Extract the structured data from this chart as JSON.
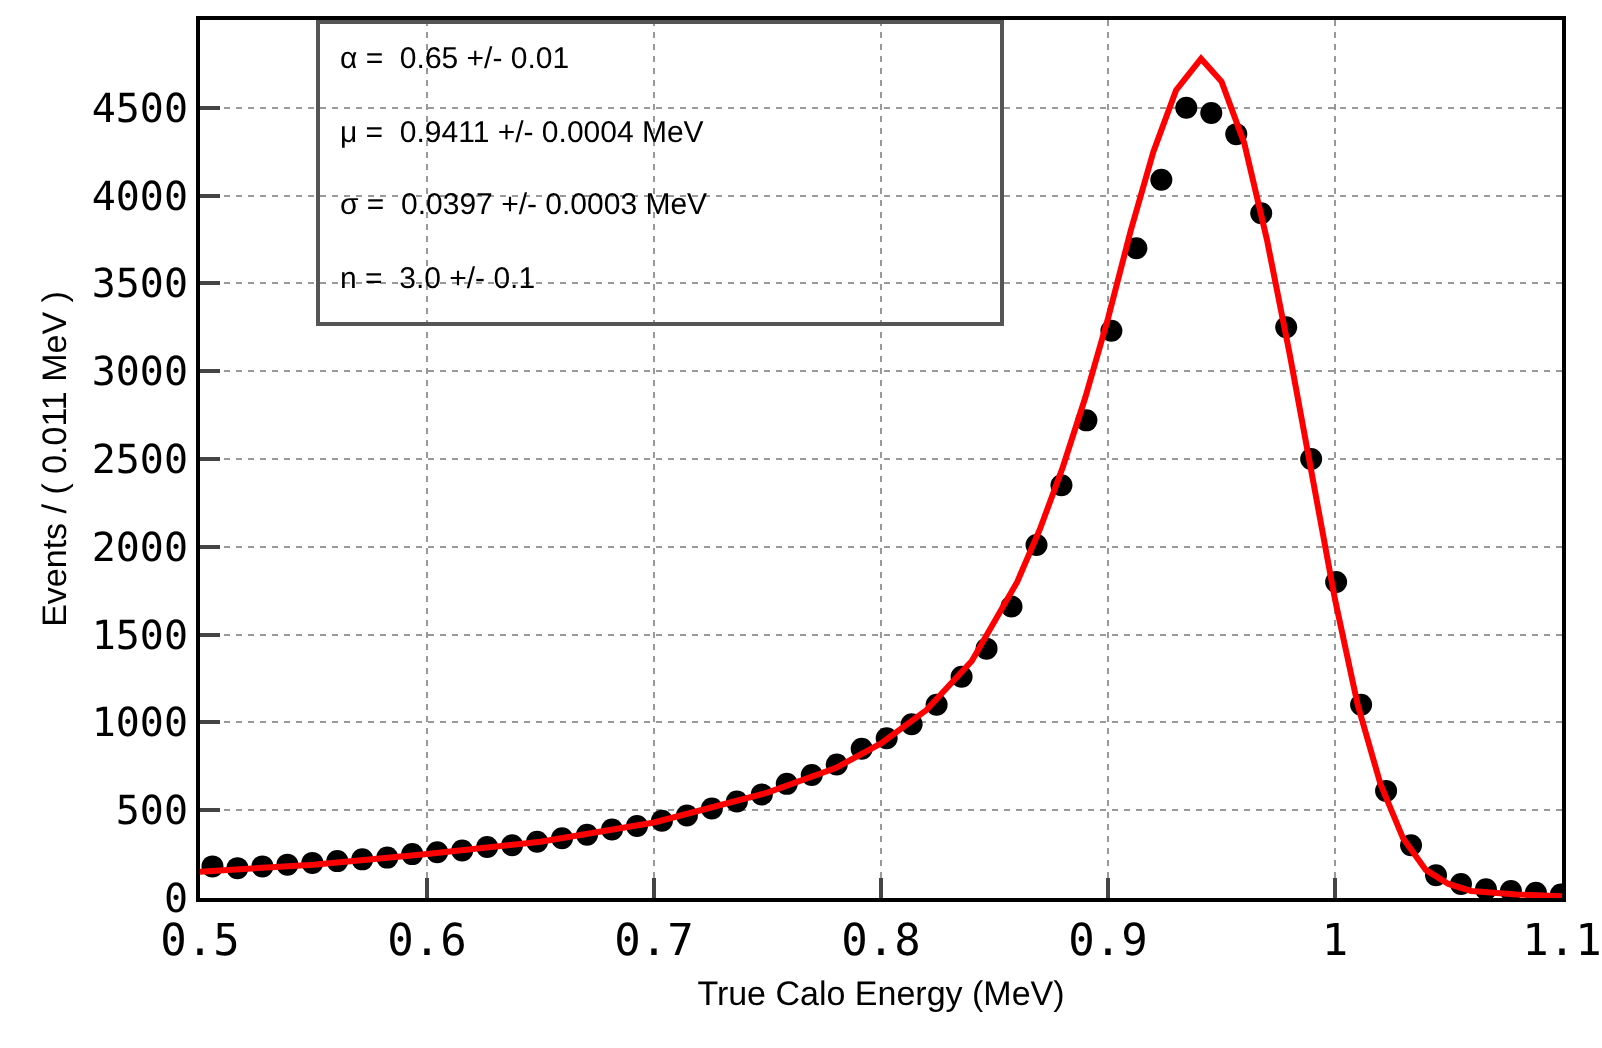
{
  "chart_data": {
    "type": "scatter",
    "xlabel": "True Calo Energy (MeV)",
    "ylabel": "Events / ( 0.011 MeV )",
    "xlim": [
      0.5,
      1.1
    ],
    "xticks": [
      0.5,
      0.6,
      0.7,
      0.8,
      0.9,
      {
        "value": 1,
        "label": "1"
      },
      1.1
    ],
    "ylim": [
      0,
      5000
    ],
    "yticks": [
      0,
      500,
      1000,
      1500,
      2000,
      2500,
      3000,
      3500,
      4000,
      4500
    ],
    "grid": true,
    "marker": "circle",
    "annotations": [
      "α =  0.65 +/- 0.01",
      "μ =  0.9411 +/- 0.0004 MeV",
      "σ =  0.0397 +/- 0.0003 MeV",
      "n =  3.0 +/- 0.1"
    ],
    "series": [
      {
        "color": "#000000",
        "x": [
          0.5055,
          0.5165,
          0.5275,
          0.5385,
          0.5495,
          0.5605,
          0.5715,
          0.5825,
          0.5935,
          0.6045,
          0.6155,
          0.6265,
          0.6375,
          0.6485,
          0.6595,
          0.6705,
          0.6815,
          0.6925,
          0.7035,
          0.7145,
          0.7255,
          0.7365,
          0.7475,
          0.7585,
          0.7695,
          0.7805,
          0.7915,
          0.8025,
          0.8135,
          0.8245,
          0.8355,
          0.8465,
          0.8575,
          0.8685,
          0.8795,
          0.8905,
          0.9015,
          0.9125,
          0.9235,
          0.9345,
          0.9455,
          0.9565,
          0.9675,
          0.9785,
          0.9895,
          1.0005,
          1.0115,
          1.0225,
          1.0335,
          1.0445,
          1.0555,
          1.0665,
          1.0775,
          1.0885,
          1.0995
        ],
        "values": [
          180,
          170,
          180,
          190,
          200,
          210,
          220,
          230,
          250,
          260,
          270,
          290,
          300,
          320,
          340,
          360,
          390,
          410,
          440,
          470,
          510,
          550,
          590,
          650,
          700,
          760,
          850,
          910,
          990,
          1100,
          1260,
          1420,
          1660,
          2010,
          2350,
          2720,
          3230,
          3700,
          4090,
          4500,
          4470,
          4350,
          3900,
          3250,
          2500,
          1800,
          1100,
          610,
          300,
          130,
          80,
          50,
          40,
          30,
          20
        ]
      },
      {
        "type": "line",
        "color": "#ff0000",
        "marker": "none",
        "x": [
          0.5,
          0.55,
          0.6,
          0.65,
          0.7,
          0.75,
          0.78,
          0.8,
          0.82,
          0.84,
          0.86,
          0.87,
          0.88,
          0.89,
          0.9,
          0.91,
          0.92,
          0.93,
          0.941,
          0.95,
          0.96,
          0.97,
          0.98,
          0.99,
          1.0,
          1.01,
          1.02,
          1.03,
          1.04,
          1.05,
          1.06,
          1.08,
          1.1
        ],
        "values": [
          150,
          190,
          250,
          320,
          430,
          600,
          740,
          880,
          1070,
          1350,
          1800,
          2100,
          2450,
          2850,
          3300,
          3800,
          4250,
          4600,
          4780,
          4650,
          4300,
          3750,
          3100,
          2400,
          1700,
          1100,
          650,
          340,
          160,
          80,
          40,
          20,
          10
        ]
      }
    ]
  }
}
